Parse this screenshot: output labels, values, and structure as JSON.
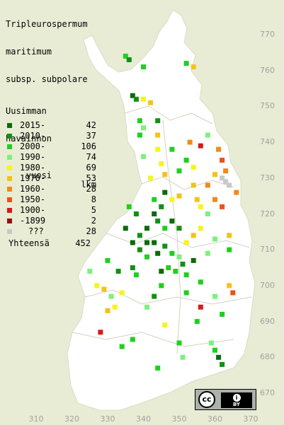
{
  "title": [
    "Tripleurospermum",
    "maritimum",
    "subsp. subpolare"
  ],
  "legend": {
    "heading": [
      "Uusimman",
      "havainnon",
      "vuosi"
    ],
    "count_header": "lkm",
    "rows": [
      {
        "label": "2015-",
        "count": "42",
        "color": "#0a6b0a"
      },
      {
        "label": "2010-",
        "count": "37",
        "color": "#139013"
      },
      {
        "label": "2000-",
        "count": "106",
        "color": "#1fcf1f"
      },
      {
        "label": "1990-",
        "count": "74",
        "color": "#7ef07e"
      },
      {
        "label": "1980-",
        "count": "69",
        "color": "#f5f51a"
      },
      {
        "label": "1970-",
        "count": "53",
        "color": "#f3c21a"
      },
      {
        "label": "1960-",
        "count": "28",
        "color": "#f08a18"
      },
      {
        "label": "1950-",
        "count": "8",
        "color": "#e8531a"
      },
      {
        "label": "1900-",
        "count": "5",
        "color": "#d31b1b"
      },
      {
        "label": "-1899",
        "count": "2",
        "color": "#8f1212"
      },
      {
        "label": "???",
        "count": "28",
        "color": "#c8c8c8"
      }
    ],
    "total_label": "Yhteensä",
    "total": "452"
  },
  "axes": {
    "y_ticks": [
      "770",
      "760",
      "750",
      "740",
      "730",
      "720",
      "710",
      "700",
      "690",
      "680",
      "670"
    ],
    "x_ticks": [
      "310",
      "320",
      "330",
      "340",
      "350",
      "360",
      "370"
    ]
  },
  "license": {
    "cc": "cc",
    "by": "BY"
  },
  "chart_data": {
    "type": "map",
    "title": "Tripleurospermum maritimum subsp. subpolare",
    "grid": "Finnish uniform grid 10 km squares",
    "y_range": [
      665,
      775
    ],
    "x_range": [
      305,
      375
    ],
    "colors": {
      "2015-": "#0a6b0a",
      "2010-": "#139013",
      "2000-": "#1fcf1f",
      "1990-": "#7ef07e",
      "1980-": "#f5f51a",
      "1970-": "#f3c21a",
      "1960-": "#f08a18",
      "1950-": "#e8531a",
      "1900-": "#d31b1b",
      "-1899": "#8f1212",
      "???": "#c8c8c8"
    },
    "points": [
      {
        "x": 335,
        "y": 764,
        "c": "2000-"
      },
      {
        "x": 336,
        "y": 763,
        "c": "2010-"
      },
      {
        "x": 340,
        "y": 761,
        "c": "2000-"
      },
      {
        "x": 352,
        "y": 762,
        "c": "2000-"
      },
      {
        "x": 354,
        "y": 761,
        "c": "1970-"
      },
      {
        "x": 337,
        "y": 753,
        "c": "2015-"
      },
      {
        "x": 338,
        "y": 752,
        "c": "2010-"
      },
      {
        "x": 340,
        "y": 752,
        "c": "1980-"
      },
      {
        "x": 342,
        "y": 751,
        "c": "1970-"
      },
      {
        "x": 339,
        "y": 746,
        "c": "2000-"
      },
      {
        "x": 340,
        "y": 744,
        "c": "1990-"
      },
      {
        "x": 339,
        "y": 742,
        "c": "2000-"
      },
      {
        "x": 344,
        "y": 742,
        "c": "1970-"
      },
      {
        "x": 344,
        "y": 738,
        "c": "1980-"
      },
      {
        "x": 340,
        "y": 736,
        "c": "1990-"
      },
      {
        "x": 348,
        "y": 738,
        "c": "2000-"
      },
      {
        "x": 345,
        "y": 734,
        "c": "1980-"
      },
      {
        "x": 353,
        "y": 740,
        "c": "1960-"
      },
      {
        "x": 361,
        "y": 738,
        "c": "1960-"
      },
      {
        "x": 362,
        "y": 735,
        "c": "1950-"
      },
      {
        "x": 363,
        "y": 732,
        "c": "1960-"
      },
      {
        "x": 362,
        "y": 730,
        "c": "???"
      },
      {
        "x": 363,
        "y": 729,
        "c": "???"
      },
      {
        "x": 364,
        "y": 728,
        "c": "???"
      },
      {
        "x": 360,
        "y": 731,
        "c": "1970-"
      },
      {
        "x": 354,
        "y": 733,
        "c": "1980-"
      },
      {
        "x": 352,
        "y": 735,
        "c": "2000-"
      },
      {
        "x": 346,
        "y": 726,
        "c": "2015-"
      },
      {
        "x": 343,
        "y": 724,
        "c": "2000-"
      },
      {
        "x": 345,
        "y": 722,
        "c": "2010-"
      },
      {
        "x": 348,
        "y": 724,
        "c": "1980-"
      },
      {
        "x": 350,
        "y": 725,
        "c": "1970-"
      },
      {
        "x": 355,
        "y": 724,
        "c": "1970-"
      },
      {
        "x": 356,
        "y": 722,
        "c": "1980-"
      },
      {
        "x": 358,
        "y": 720,
        "c": "1990-"
      },
      {
        "x": 360,
        "y": 724,
        "c": "1960-"
      },
      {
        "x": 362,
        "y": 722,
        "c": "1950-"
      },
      {
        "x": 343,
        "y": 720,
        "c": "2015-"
      },
      {
        "x": 344,
        "y": 718,
        "c": "2010-"
      },
      {
        "x": 346,
        "y": 716,
        "c": "2000-"
      },
      {
        "x": 348,
        "y": 718,
        "c": "2015-"
      },
      {
        "x": 350,
        "y": 716,
        "c": "2010-"
      },
      {
        "x": 341,
        "y": 716,
        "c": "2015-"
      },
      {
        "x": 339,
        "y": 714,
        "c": "2010-"
      },
      {
        "x": 341,
        "y": 712,
        "c": "2015-"
      },
      {
        "x": 343,
        "y": 712,
        "c": "2015-"
      },
      {
        "x": 339,
        "y": 710,
        "c": "2010-"
      },
      {
        "x": 341,
        "y": 708,
        "c": "2000-"
      },
      {
        "x": 344,
        "y": 709,
        "c": "2015-"
      },
      {
        "x": 346,
        "y": 711,
        "c": "2010-"
      },
      {
        "x": 348,
        "y": 709,
        "c": "2000-"
      },
      {
        "x": 350,
        "y": 708,
        "c": "1990-"
      },
      {
        "x": 352,
        "y": 712,
        "c": "1980-"
      },
      {
        "x": 354,
        "y": 714,
        "c": "1970-"
      },
      {
        "x": 356,
        "y": 716,
        "c": "1980-"
      },
      {
        "x": 347,
        "y": 705,
        "c": "2000-"
      },
      {
        "x": 349,
        "y": 704,
        "c": "2000-"
      },
      {
        "x": 351,
        "y": 706,
        "c": "2010-"
      },
      {
        "x": 345,
        "y": 704,
        "c": "2015-"
      },
      {
        "x": 337,
        "y": 705,
        "c": "2010-"
      },
      {
        "x": 338,
        "y": 703,
        "c": "2000-"
      },
      {
        "x": 330,
        "y": 707,
        "c": "2000-"
      },
      {
        "x": 333,
        "y": 704,
        "c": "2010-"
      },
      {
        "x": 325,
        "y": 704,
        "c": "1990-"
      },
      {
        "x": 327,
        "y": 700,
        "c": "1980-"
      },
      {
        "x": 329,
        "y": 699,
        "c": "1970-"
      },
      {
        "x": 331,
        "y": 697,
        "c": "1990-"
      },
      {
        "x": 332,
        "y": 694,
        "c": "1980-"
      },
      {
        "x": 330,
        "y": 693,
        "c": "1970-"
      },
      {
        "x": 334,
        "y": 698,
        "c": "1980-"
      },
      {
        "x": 345,
        "y": 700,
        "c": "2000-"
      },
      {
        "x": 352,
        "y": 698,
        "c": "2000-"
      },
      {
        "x": 356,
        "y": 701,
        "c": "2000-"
      },
      {
        "x": 360,
        "y": 697,
        "c": "1990-"
      },
      {
        "x": 364,
        "y": 700,
        "c": "1970-"
      },
      {
        "x": 365,
        "y": 698,
        "c": "1950-"
      },
      {
        "x": 356,
        "y": 694,
        "c": "1900-"
      },
      {
        "x": 362,
        "y": 692,
        "c": "2000-"
      },
      {
        "x": 355,
        "y": 690,
        "c": "2000-"
      },
      {
        "x": 346,
        "y": 689,
        "c": "1980-"
      },
      {
        "x": 328,
        "y": 687,
        "c": "1900-"
      },
      {
        "x": 337,
        "y": 685,
        "c": "2000-"
      },
      {
        "x": 334,
        "y": 683,
        "c": "2000-"
      },
      {
        "x": 359,
        "y": 684,
        "c": "1990-"
      },
      {
        "x": 360,
        "y": 682,
        "c": "2000-"
      },
      {
        "x": 361,
        "y": 680,
        "c": "2015-"
      },
      {
        "x": 362,
        "y": 678,
        "c": "2010-"
      },
      {
        "x": 351,
        "y": 680,
        "c": "1990-"
      },
      {
        "x": 344,
        "y": 677,
        "c": "2000-"
      },
      {
        "x": 350,
        "y": 684,
        "c": "2000-"
      },
      {
        "x": 366,
        "y": 726,
        "c": "1960-"
      },
      {
        "x": 364,
        "y": 710,
        "c": "2000-"
      },
      {
        "x": 364,
        "y": 714,
        "c": "1970-"
      },
      {
        "x": 360,
        "y": 713,
        "c": "1990-"
      },
      {
        "x": 358,
        "y": 709,
        "c": "1990-"
      },
      {
        "x": 354,
        "y": 707,
        "c": "2015-"
      },
      {
        "x": 352,
        "y": 703,
        "c": "2000-"
      },
      {
        "x": 343,
        "y": 697,
        "c": "2010-"
      },
      {
        "x": 341,
        "y": 694,
        "c": "1990-"
      },
      {
        "x": 338,
        "y": 720,
        "c": "2010-"
      },
      {
        "x": 336,
        "y": 722,
        "c": "2000-"
      },
      {
        "x": 337,
        "y": 712,
        "c": "2015-"
      },
      {
        "x": 335,
        "y": 716,
        "c": "2015-"
      },
      {
        "x": 342,
        "y": 730,
        "c": "1980-"
      },
      {
        "x": 346,
        "y": 731,
        "c": "1970-"
      },
      {
        "x": 350,
        "y": 732,
        "c": "2000-"
      },
      {
        "x": 354,
        "y": 728,
        "c": "1970-"
      },
      {
        "x": 358,
        "y": 728,
        "c": "1960-"
      },
      {
        "x": 344,
        "y": 746,
        "c": "2010-"
      },
      {
        "x": 358,
        "y": 742,
        "c": "1990-"
      },
      {
        "x": 356,
        "y": 739,
        "c": "1900-"
      }
    ]
  }
}
